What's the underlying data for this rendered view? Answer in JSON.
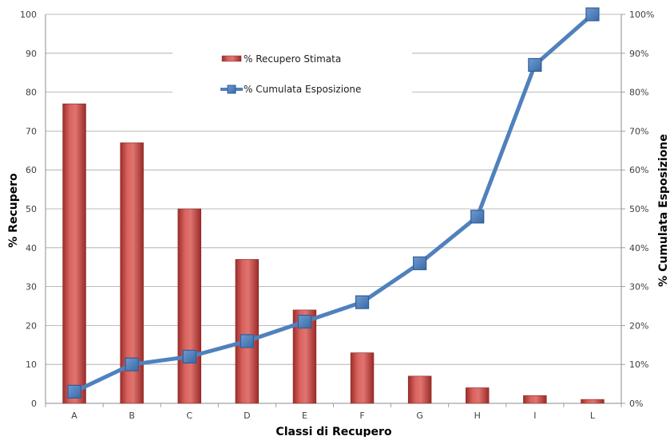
{
  "chart_data": {
    "type": "bar+line",
    "categories": [
      "A",
      "B",
      "C",
      "D",
      "E",
      "F",
      "G",
      "H",
      "I",
      "L"
    ],
    "series": [
      {
        "name": "% Recupero Stimata",
        "type": "bar",
        "axis": "left",
        "values": [
          77,
          67,
          50,
          37,
          24,
          13,
          7,
          4,
          2,
          1
        ],
        "color": "#c0504d"
      },
      {
        "name": "% Cumulata Esposizione",
        "type": "line",
        "axis": "right",
        "values": [
          3,
          10,
          12,
          16,
          21,
          26,
          36,
          48,
          87,
          100
        ],
        "color": "#4f81bd",
        "marker": "square"
      }
    ],
    "xlabel": "Classi di Recupero",
    "ylabel": "% Recupero",
    "y2label": "% Cumulata Esposizione",
    "ylim": [
      0,
      100
    ],
    "y2lim": [
      0,
      100
    ],
    "yticks": [
      "0",
      "10",
      "20",
      "30",
      "40",
      "50",
      "60",
      "70",
      "80",
      "90",
      "100"
    ],
    "y2ticks": [
      "0%",
      "10%",
      "20%",
      "30%",
      "40%",
      "50%",
      "60%",
      "70%",
      "80%",
      "90%",
      "100%"
    ],
    "grid": true,
    "legend_position": "top-center"
  }
}
